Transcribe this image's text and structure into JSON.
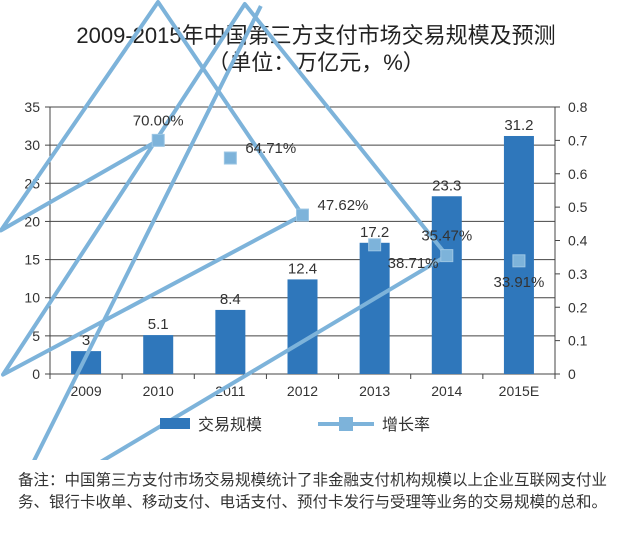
{
  "chart_data": {
    "type": "bar+line",
    "title": "2009-2015年中国第三方支付市场交易规模及预测",
    "subtitle": "（单位：万亿元，%）",
    "categories": [
      "2009",
      "2010",
      "2011",
      "2012",
      "2013",
      "2014",
      "2015E"
    ],
    "series": [
      {
        "name": "交易规模",
        "type": "bar",
        "axis": "left",
        "values": [
          3,
          5.1,
          8.4,
          12.4,
          17.2,
          23.3,
          31.2
        ],
        "labels": [
          "3",
          "5.1",
          "8.4",
          "12.4",
          "17.2",
          "23.3",
          "31.2"
        ],
        "color": "#2f77bb"
      },
      {
        "name": "增长率",
        "type": "line",
        "axis": "right",
        "values": [
          null,
          0.7,
          0.6471,
          0.4762,
          0.3871,
          0.3547,
          0.3391
        ],
        "labels": [
          "",
          "70.00%",
          "64.71%",
          "47.62%",
          "38.71%",
          "35.47%",
          "33.91%"
        ],
        "color": "#7db3da"
      }
    ],
    "y_left": {
      "range": [
        0,
        35
      ],
      "ticks": [
        "0",
        "5",
        "10",
        "15",
        "20",
        "25",
        "30",
        "35"
      ]
    },
    "y_right": {
      "range": [
        0,
        0.8
      ],
      "ticks": [
        "0",
        "0.1",
        "0.2",
        "0.3",
        "0.4",
        "0.5",
        "0.6",
        "0.7",
        "0.8"
      ]
    },
    "grid": "horizontal",
    "legend": "bottom"
  },
  "note": "备注：中国第三方支付市场交易规模统计了非金融支付机构规模以上企业互联网支付业务、银行卡收单、移动支付、电话支付、预付卡发行与受理等业务的交易规模的总和。"
}
